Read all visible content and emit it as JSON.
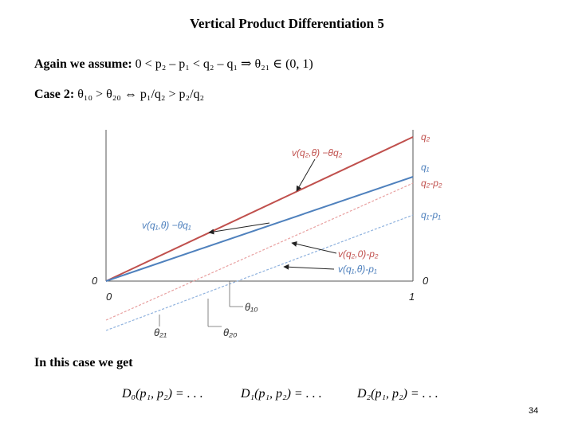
{
  "slide": {
    "title": "Vertical Product Differentiation 5",
    "assumption": {
      "prefix": "Again we assume:",
      "math": "0 < p₂ – p₁ < q₂ – q₁ ⇒ θ₂₁ ∈ (0, 1)"
    },
    "case": {
      "prefix": "Case 2:",
      "math": "θ₁₀ > θ₂₀ ⇔ p₁/q₂ > p₂/q₂"
    },
    "result_intro": "In this case we get",
    "demands": [
      "D₀(p₁, p₂) = . . .",
      "D₁(p₁, p₂) = . . .",
      "D₂(p₁, p₂) = . . ."
    ],
    "page_number": "34"
  },
  "diagram": {
    "right_axis_labels": {
      "q2": "q₂",
      "q1": "q₁",
      "q2_minus_p2": "q₂-p₂",
      "q1_minus_p1": "q₁-p₁",
      "zero_right": "0"
    },
    "left_axis_labels": {
      "zero_left": "0"
    },
    "x_axis_labels": {
      "zero": "0",
      "one": "1"
    },
    "theta_labels": {
      "theta10": "θ₁₀",
      "theta21": "θ₂₁",
      "theta20": "θ₂₀"
    },
    "annotations": {
      "v_q2": "v(q₂,θ) −θq₂",
      "v_q1": "v(q₁,θ) −θq₁",
      "v_q2_0": "v(q₂,0)-p₂",
      "v_q1_0": "v(q₁,θ)-p₁"
    },
    "colors": {
      "red_line": "#c0504d",
      "blue_line": "#4f81bd",
      "axis": "#555555"
    }
  }
}
